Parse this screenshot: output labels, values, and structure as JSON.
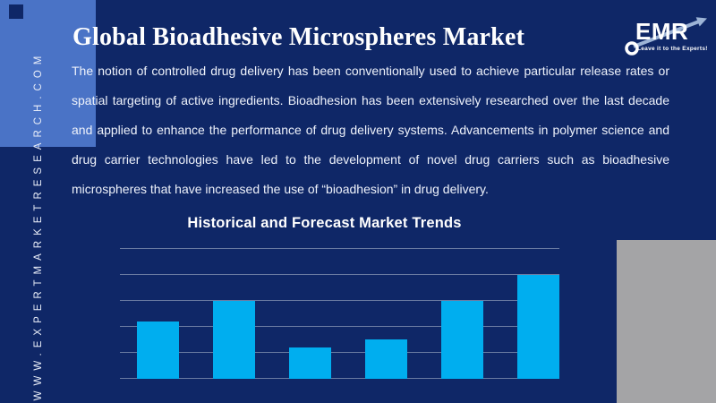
{
  "colors": {
    "background": "#0f2767",
    "accent_rect": "#4a73c6",
    "gray_rect": "#a4a4a6",
    "bar": "#00aeef",
    "gridline": "#6a7ba2",
    "logo_arrow": "#9db4d6"
  },
  "sidebar": {
    "url": "WWW.EXPERTMARKETRESEARCH.COM"
  },
  "logo": {
    "name": "EMR",
    "tagline": "Leave it to the Experts!"
  },
  "header": {
    "title": "Global Bioadhesive Microspheres Market"
  },
  "intro": {
    "text": "The notion of controlled drug delivery has been conventionally used to achieve particular release rates or spatial targeting of active ingredients. Bioadhesion has been extensively researched over the last decade and applied to enhance the performance of drug delivery systems. Advancements in polymer science and drug carrier technologies have led to the development of novel drug carriers such as bioadhesive microspheres that have increased the use of “bioadhesion” in drug delivery."
  },
  "chart_data": {
    "type": "bar",
    "title": "Historical and Forecast Market Trends",
    "categories": [
      "",
      "",
      "",
      "",
      "",
      ""
    ],
    "values": [
      2.2,
      3.0,
      1.2,
      1.5,
      3.0,
      4.0
    ],
    "xlabel": "",
    "ylabel": "",
    "ylim": [
      0,
      5
    ],
    "gridline_count": 6,
    "grid": true,
    "legend": false,
    "axis_tick_labels_visible": false
  }
}
